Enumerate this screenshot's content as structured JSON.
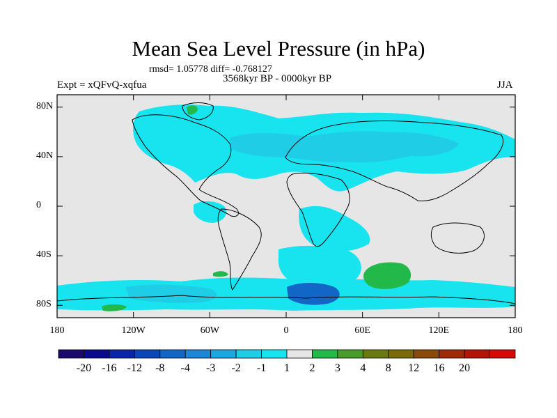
{
  "title": "Mean Sea Level Pressure (in hPa)",
  "stats": "rmsd= 1.05778 diff= -0.768127",
  "period": "3568kyr BP - 0000kyr BP",
  "experiment": "Expt = xQFvQ-xqfua",
  "season": "JJA",
  "y_axis": {
    "ticks": [
      {
        "value": 80,
        "label": "80N"
      },
      {
        "value": 40,
        "label": "40N"
      },
      {
        "value": 0,
        "label": "0"
      },
      {
        "value": -40,
        "label": "40S"
      },
      {
        "value": -80,
        "label": "80S"
      }
    ],
    "range": [
      -90,
      90
    ]
  },
  "x_axis": {
    "ticks": [
      {
        "value": -180,
        "label": "180"
      },
      {
        "value": -120,
        "label": "120W"
      },
      {
        "value": -60,
        "label": "60W"
      },
      {
        "value": 0,
        "label": "0"
      },
      {
        "value": 60,
        "label": "60E"
      },
      {
        "value": 120,
        "label": "120E"
      },
      {
        "value": 180,
        "label": "180"
      }
    ],
    "range": [
      -180,
      180
    ]
  },
  "colorbar": {
    "colors": [
      "#1a0a6b",
      "#0a0a8c",
      "#0a26a8",
      "#0a46b8",
      "#1266c6",
      "#1d86d6",
      "#1ba8e0",
      "#20cde6",
      "#17e4ee",
      "#e6e6e6",
      "#22b84a",
      "#4a9a2c",
      "#6a7a10",
      "#7a6a08",
      "#8a4a08",
      "#9e2a08",
      "#b41408",
      "#d40a0a"
    ],
    "labels": [
      "-20",
      "-16",
      "-12",
      "-8",
      "-4",
      "-3",
      "-2",
      "-1",
      "1",
      "2",
      "3",
      "4",
      "8",
      "12",
      "16",
      "20"
    ]
  },
  "colors": {
    "background_field": "#e6e6e6",
    "light_negative": "#17e4ee",
    "moderate_negative": "#20cde6",
    "strong_negative": "#1266c6",
    "positive": "#22b84a"
  }
}
